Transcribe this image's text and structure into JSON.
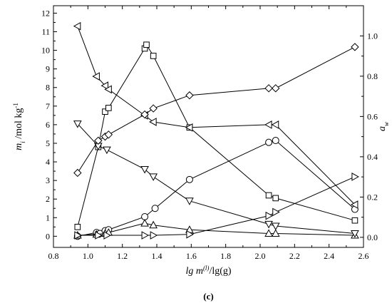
{
  "chart_data": {
    "type": "line",
    "caption": "(c)",
    "x_axis": {
      "label_parts": [
        "lg m",
        "(l)",
        "/lg(g)"
      ],
      "lim": [
        0.8,
        2.6
      ],
      "ticks": [
        "0.8",
        "1.0",
        "1.2",
        "1.4",
        "1.6",
        "1.8",
        "2.0",
        "2.2",
        "2.4",
        "2.6"
      ]
    },
    "y_left": {
      "label_parts": [
        "m",
        "i",
        " /mol kg",
        "-1"
      ],
      "lim": [
        -0.6,
        12.4
      ],
      "ticks": [
        "0",
        "1",
        "2",
        "3",
        "4",
        "5",
        "6",
        "7",
        "8",
        "9",
        "10",
        "11",
        "12"
      ]
    },
    "y_right": {
      "label_parts": [
        "a",
        "w"
      ],
      "lim": [
        -0.05,
        1.15
      ],
      "ticks": [
        "0.0",
        "0.2",
        "0.4",
        "0.6",
        "0.8",
        "1.0"
      ]
    },
    "series": [
      {
        "marker": "square",
        "axis": "left",
        "points": [
          [
            0.94,
            0.5
          ],
          [
            1.06,
            4.8
          ],
          [
            1.1,
            6.7
          ],
          [
            1.12,
            6.9
          ],
          [
            1.33,
            10.1
          ],
          [
            1.34,
            10.3
          ],
          [
            1.38,
            9.7
          ],
          [
            1.59,
            5.85
          ],
          [
            2.05,
            2.2
          ],
          [
            2.09,
            2.05
          ],
          [
            2.55,
            0.85
          ]
        ]
      },
      {
        "marker": "circle",
        "axis": "left",
        "points": [
          [
            0.94,
            0.0
          ],
          [
            1.05,
            0.2
          ],
          [
            1.07,
            0.15
          ],
          [
            1.1,
            0.3
          ],
          [
            1.12,
            0.35
          ],
          [
            1.33,
            1.05
          ],
          [
            1.39,
            1.5
          ],
          [
            1.59,
            3.05
          ],
          [
            2.05,
            5.05
          ],
          [
            2.09,
            5.15
          ],
          [
            2.55,
            1.45
          ]
        ]
      },
      {
        "marker": "triangle-up",
        "axis": "left",
        "points": [
          [
            0.94,
            0.05
          ],
          [
            1.05,
            0.1
          ],
          [
            1.1,
            0.15
          ],
          [
            1.12,
            0.2
          ],
          [
            1.33,
            0.7
          ],
          [
            1.38,
            0.6
          ],
          [
            1.59,
            0.35
          ],
          [
            2.05,
            0.15
          ],
          [
            2.09,
            0.15
          ],
          [
            2.55,
            0.05
          ]
        ]
      },
      {
        "marker": "triangle-down",
        "axis": "left",
        "points": [
          [
            0.94,
            6.05
          ],
          [
            1.06,
            4.85
          ],
          [
            1.11,
            4.65
          ],
          [
            1.33,
            3.6
          ],
          [
            1.38,
            3.2
          ],
          [
            1.59,
            1.9
          ],
          [
            2.05,
            0.65
          ],
          [
            2.09,
            0.55
          ],
          [
            2.55,
            0.15
          ]
        ]
      },
      {
        "marker": "triangle-left",
        "axis": "left",
        "points": [
          [
            0.94,
            11.3
          ],
          [
            1.05,
            8.6
          ],
          [
            1.1,
            8.1
          ],
          [
            1.12,
            7.9
          ],
          [
            1.33,
            6.5
          ],
          [
            1.38,
            6.15
          ],
          [
            1.59,
            5.85
          ],
          [
            2.05,
            6.0
          ],
          [
            2.09,
            6.0
          ],
          [
            2.55,
            1.7
          ]
        ]
      },
      {
        "marker": "triangle-right",
        "axis": "left",
        "points": [
          [
            0.94,
            0.05
          ],
          [
            1.06,
            0.05
          ],
          [
            1.11,
            0.05
          ],
          [
            1.33,
            0.05
          ],
          [
            1.38,
            0.05
          ],
          [
            1.59,
            0.1
          ],
          [
            2.05,
            1.1
          ],
          [
            2.09,
            1.3
          ],
          [
            2.55,
            3.2
          ]
        ]
      },
      {
        "marker": "diamond",
        "axis": "right",
        "points": [
          [
            0.94,
            0.32
          ],
          [
            1.06,
            0.48
          ],
          [
            1.1,
            0.5
          ],
          [
            1.12,
            0.51
          ],
          [
            1.33,
            0.61
          ],
          [
            1.38,
            0.64
          ],
          [
            1.59,
            0.705
          ],
          [
            2.05,
            0.74
          ],
          [
            2.09,
            0.74
          ],
          [
            2.55,
            0.945
          ]
        ]
      }
    ]
  }
}
